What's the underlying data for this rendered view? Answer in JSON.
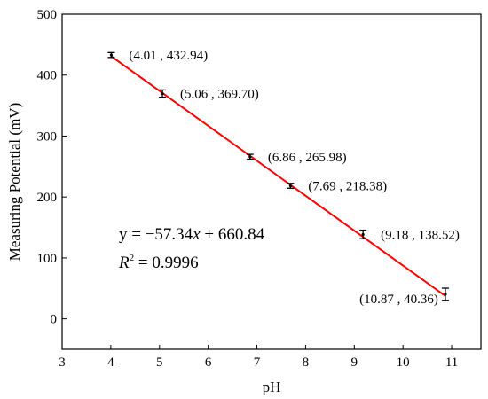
{
  "chart_data": {
    "type": "scatter",
    "xlabel": "pH",
    "ylabel": "Measuring Potential (mV)",
    "xlim": [
      3,
      11.6
    ],
    "ylim": [
      -50,
      500
    ],
    "x_ticks": [
      "3",
      "4",
      "5",
      "6",
      "7",
      "8",
      "9",
      "10",
      "11"
    ],
    "y_ticks": [
      "0",
      "100",
      "200",
      "300",
      "400",
      "500"
    ],
    "grid": false,
    "points": [
      {
        "x": 4.01,
        "y": 432.94,
        "err": 4,
        "label": "(4.01 , 432.94)"
      },
      {
        "x": 5.06,
        "y": 369.7,
        "err": 6,
        "label": "(5.06 , 369.70)"
      },
      {
        "x": 6.86,
        "y": 265.98,
        "err": 4,
        "label": "(6.86 , 265.98)"
      },
      {
        "x": 7.69,
        "y": 218.38,
        "err": 4,
        "label": "(7.69 , 218.38)"
      },
      {
        "x": 9.18,
        "y": 138.52,
        "err": 7,
        "label": "(9.18 , 138.52)"
      },
      {
        "x": 10.87,
        "y": 40.36,
        "err": 10,
        "label": "(10.87 , 40.36)"
      }
    ],
    "fit": {
      "slope": -57.34,
      "intercept": 660.84,
      "equation_prefix": "y = −57.34",
      "equation_var": "x",
      "equation_suffix": " + 660.84",
      "r2_var": "R",
      "r2_sup": "2",
      "r2_value": " = 0.9996",
      "color": "#ff0000"
    },
    "point_color": "#000000",
    "label_positions": [
      "right",
      "right",
      "right",
      "right",
      "right",
      "left"
    ]
  }
}
